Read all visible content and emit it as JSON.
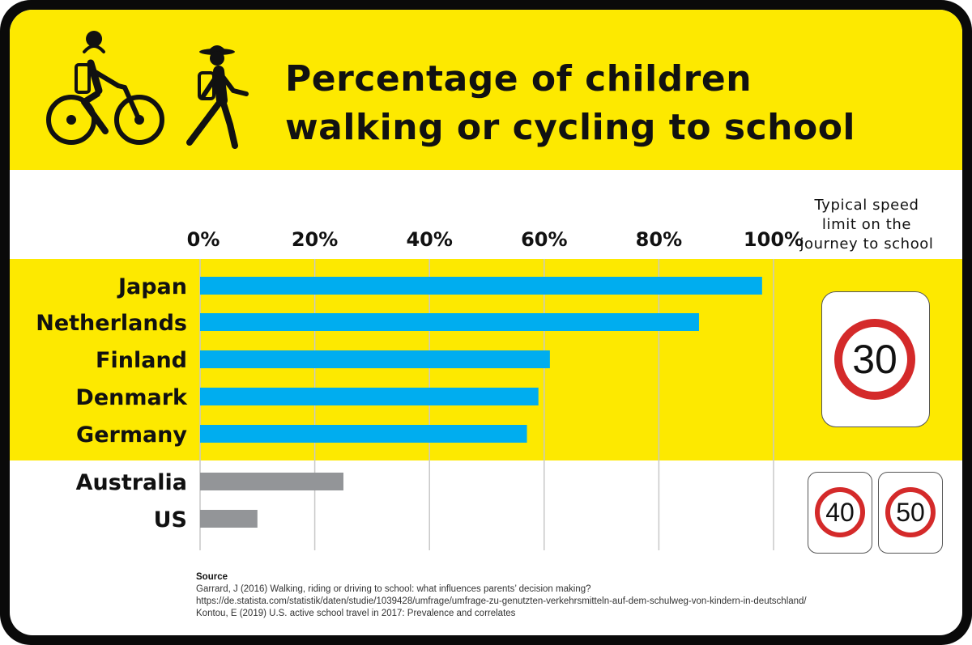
{
  "title_lines": [
    "Percentage of children",
    "walking or cycling to school"
  ],
  "chart_data": {
    "type": "bar",
    "orientation": "horizontal",
    "title": "Percentage of children walking or cycling to school",
    "categories": [
      "Japan",
      "Netherlands",
      "Finland",
      "Denmark",
      "Germany",
      "Australia",
      "US"
    ],
    "values": [
      98,
      87,
      61,
      59,
      57,
      25,
      10
    ],
    "group": [
      "30",
      "30",
      "30",
      "30",
      "30",
      "40/50",
      "40/50"
    ],
    "xlim": [
      0,
      100
    ],
    "ticks": [
      0,
      20,
      40,
      60,
      80,
      100
    ],
    "tick_labels": [
      "0%",
      "20%",
      "40%",
      "60%",
      "80%",
      "100%"
    ],
    "grid": true,
    "colors": {
      "highlight": "#00adef",
      "other": "#939598"
    }
  },
  "speed_panel": {
    "title_lines": [
      "Typical speed",
      "limit on the",
      "journey to school"
    ],
    "signs": [
      "30",
      "40",
      "50"
    ]
  },
  "source": {
    "heading": "Source",
    "lines": [
      "Garrard, J (2016) Walking, riding or driving to school: what influences parents’ decision making?",
      "https://de.statista.com/statistik/daten/studie/1039428/umfrage/umfrage-zu-genutzten-verkehrsmitteln-auf-dem-schulweg-von-kindern-in-deutschland/",
      "Kontou, E (2019) U.S. active school travel in 2017: Prevalence and correlates"
    ]
  },
  "icons": [
    "bicycle-rider-icon",
    "walking-child-icon"
  ],
  "palette": {
    "yellow": "#fde900",
    "frame": "#0a0a0a",
    "bar_blue": "#00adef",
    "bar_grey": "#939598",
    "sign_red": "#d42a2a"
  }
}
